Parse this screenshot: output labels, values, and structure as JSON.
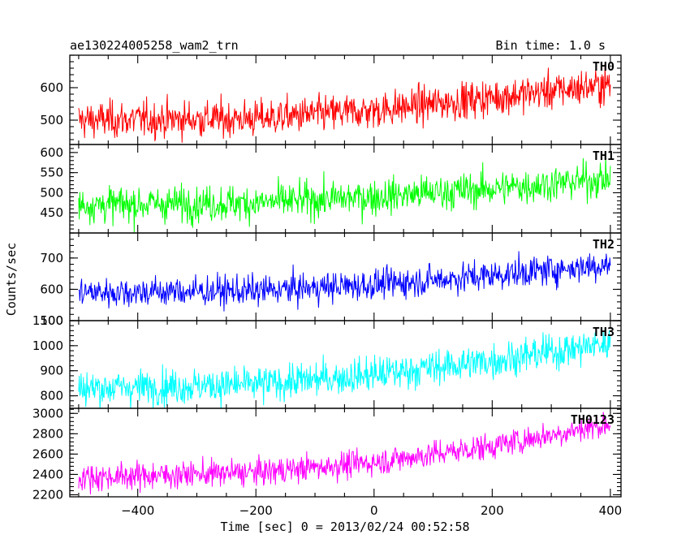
{
  "header": {
    "left_title": "ae130224005258_wam2_trn",
    "right_title": "Bin time: 1.0 s"
  },
  "chart_data": {
    "type": "line",
    "xlabel": "Time [sec] 0 = 2013/02/24 00:52:58",
    "ylabel": "Counts/sec",
    "xlim": [
      -515,
      418
    ],
    "x_ticks": [
      -400,
      -200,
      0,
      200,
      400
    ],
    "x_tick_labels": [
      "−400",
      "−200",
      "0",
      "200",
      "400"
    ],
    "x_range": [
      -500,
      400
    ],
    "bin_time_s": 1.0,
    "grid": false,
    "legend": "none",
    "panels": [
      {
        "name": "TH0",
        "color": "#ff0000",
        "ylim": [
          425,
          700
        ],
        "y_ticks": [
          500,
          600
        ],
        "trend": {
          "x": [
            -500,
            -200,
            0,
            200,
            400
          ],
          "y": [
            500,
            505,
            530,
            570,
            610
          ]
        },
        "noise_sd": 28
      },
      {
        "name": "TH1",
        "color": "#00ff00",
        "ylim": [
          400,
          620
        ],
        "y_ticks": [
          450,
          500,
          550,
          600
        ],
        "trend": {
          "x": [
            -500,
            -200,
            0,
            200,
            400
          ],
          "y": [
            470,
            475,
            490,
            510,
            535
          ]
        },
        "noise_sd": 22
      },
      {
        "name": "TH2",
        "color": "#0000ff",
        "ylim": [
          500,
          780
        ],
        "y_ticks": [
          500,
          600,
          700
        ],
        "trend": {
          "x": [
            -500,
            -200,
            0,
            200,
            400
          ],
          "y": [
            590,
            595,
            615,
            645,
            680
          ]
        },
        "noise_sd": 24
      },
      {
        "name": "TH3",
        "color": "#00ffff",
        "ylim": [
          750,
          1100
        ],
        "y_ticks": [
          800,
          900,
          1000,
          1100
        ],
        "trend": {
          "x": [
            -500,
            -200,
            0,
            200,
            400
          ],
          "y": [
            830,
            845,
            885,
            940,
            1010
          ]
        },
        "noise_sd": 35
      },
      {
        "name": "TH0123",
        "color": "#ff00ff",
        "ylim": [
          2180,
          3050
        ],
        "y_ticks": [
          2200,
          2400,
          2600,
          2800,
          3000
        ],
        "trend": {
          "x": [
            -500,
            -200,
            0,
            200,
            400
          ],
          "y": [
            2370,
            2420,
            2520,
            2680,
            2900
          ]
        },
        "noise_sd": 65
      }
    ]
  }
}
